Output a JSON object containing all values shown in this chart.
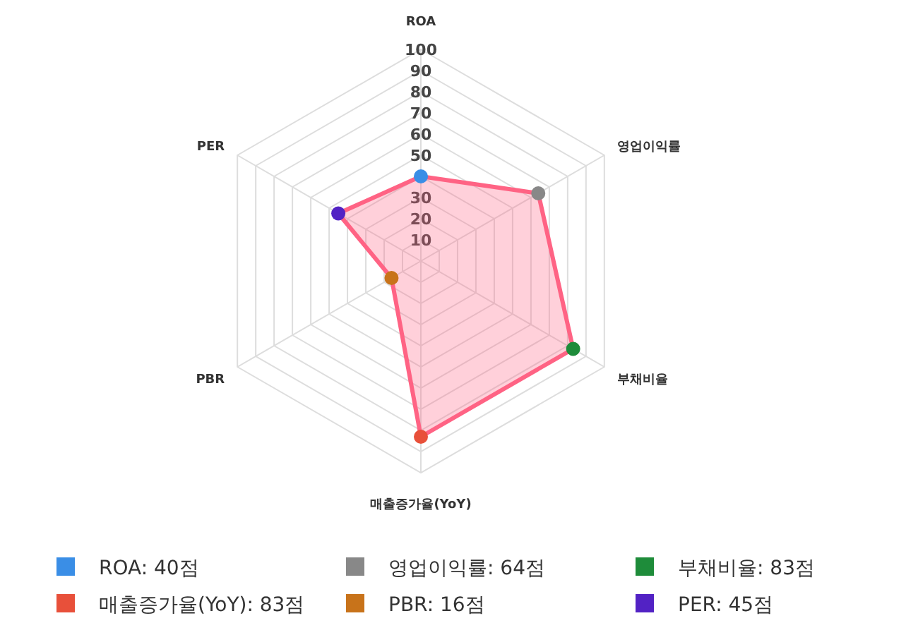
{
  "chart_data": {
    "type": "radar",
    "categories": [
      "ROA",
      "영업이익률",
      "부채비율",
      "매출증가율(YoY)",
      "PBR",
      "PER"
    ],
    "series": [
      {
        "color": "#ff6384",
        "values": [
          40,
          64,
          83,
          83,
          16,
          45
        ],
        "colors": [
          "#3a8ee6",
          "#888888",
          "#1e8c3a",
          "#e8503a",
          "#c8731a",
          "#5222c4"
        ]
      }
    ],
    "ylim": [
      0,
      100
    ],
    "yticks": [
      10,
      20,
      30,
      50,
      60,
      70,
      80,
      90,
      100
    ],
    "grid": true,
    "marker": "circle",
    "annotations": [
      "ROA: 40점",
      "영업이익률: 64점",
      "부채비율: 83점",
      "매출증가율(YoY): 83점",
      "PBR: 16점",
      "PER: 45점"
    ]
  }
}
